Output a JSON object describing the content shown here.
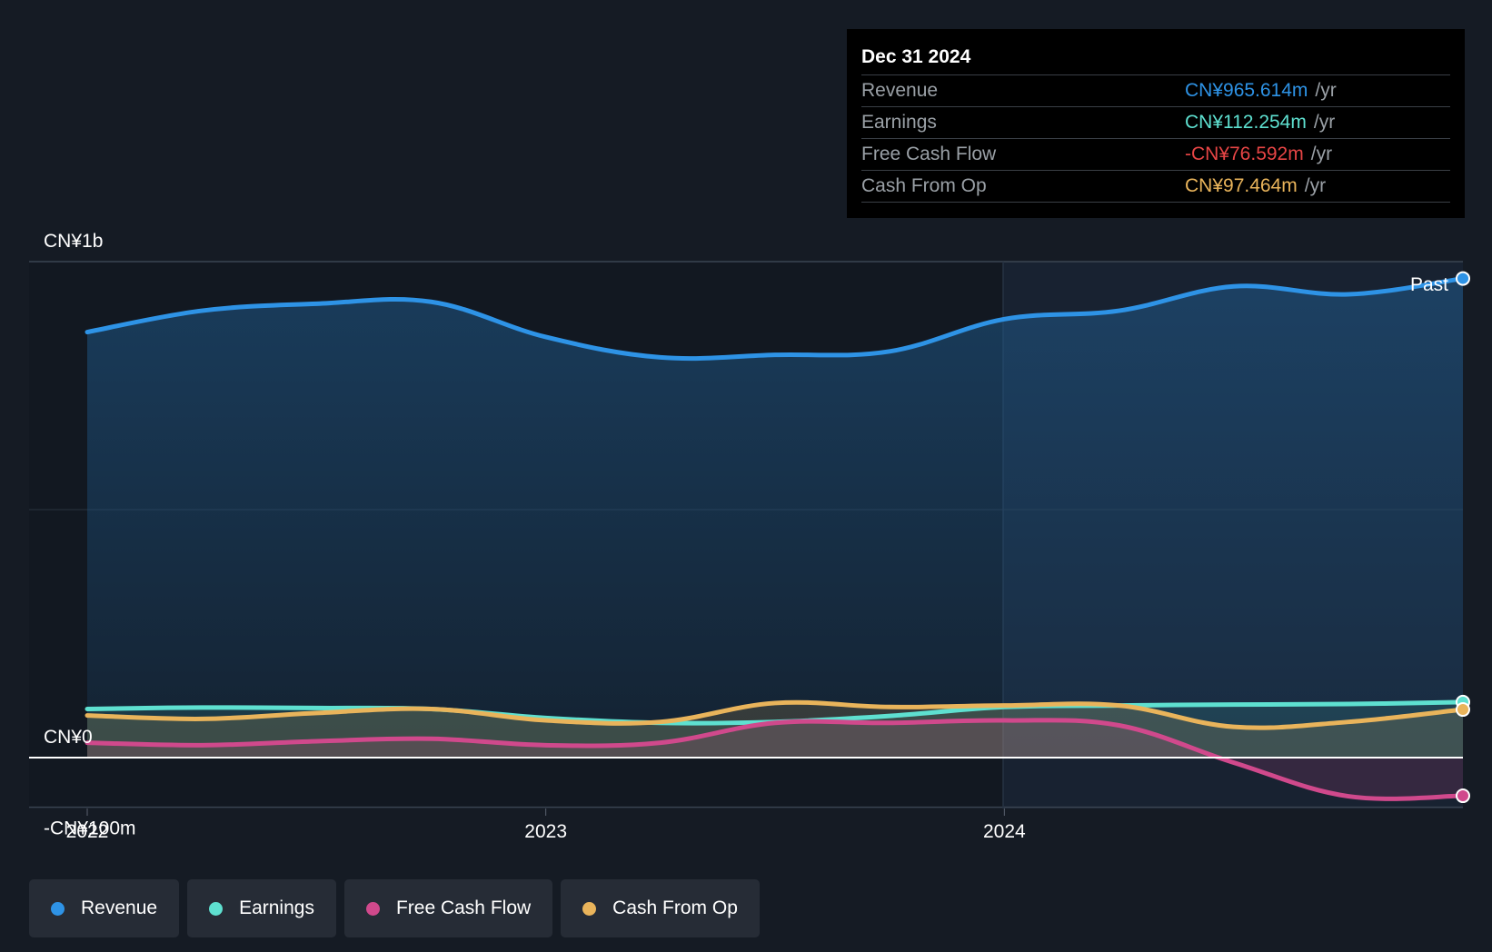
{
  "chart_data": {
    "type": "area",
    "x_ticks": [
      "2022",
      "2023",
      "2024"
    ],
    "y_ticks": [
      "CN¥1b",
      "CN¥0",
      "-CN¥100m"
    ],
    "ylim": [
      -100,
      1000
    ],
    "past_label": "Past",
    "x": [
      2022.0,
      2022.25,
      2022.5,
      2022.75,
      2023.0,
      2023.25,
      2023.5,
      2023.75,
      2024.0,
      2024.25,
      2024.5,
      2024.75,
      2025.0
    ],
    "series": [
      {
        "name": "Revenue",
        "color": "#2e93e6",
        "values": [
          858,
          901,
          915,
          919,
          848,
          807,
          812,
          819,
          884,
          901,
          950,
          934,
          966
        ]
      },
      {
        "name": "Earnings",
        "color": "#5ee0d0",
        "values": [
          98,
          101,
          100,
          98,
          80,
          70,
          72,
          84,
          102,
          105,
          107,
          108,
          112
        ]
      },
      {
        "name": "Free Cash Flow",
        "color": "#d0498c",
        "values": [
          30,
          25,
          33,
          38,
          25,
          30,
          70,
          70,
          75,
          65,
          -10,
          -78,
          -77
        ]
      },
      {
        "name": "Cash From Op",
        "color": "#e9b45b",
        "values": [
          85,
          78,
          90,
          98,
          75,
          72,
          110,
          102,
          105,
          105,
          62,
          72,
          97
        ]
      }
    ],
    "tooltip": {
      "date": "Dec 31 2024",
      "rows": [
        {
          "label": "Revenue",
          "value": "CN¥965.614m",
          "unit": "/yr",
          "color": "#2e93e6"
        },
        {
          "label": "Earnings",
          "value": "CN¥112.254m",
          "unit": "/yr",
          "color": "#5ee0d0"
        },
        {
          "label": "Free Cash Flow",
          "value": "-CN¥76.592m",
          "unit": "/yr",
          "color": "#e64545"
        },
        {
          "label": "Cash From Op",
          "value": "CN¥97.464m",
          "unit": "/yr",
          "color": "#e9b45b"
        }
      ]
    },
    "legend": [
      {
        "label": "Revenue",
        "color": "#2e93e6"
      },
      {
        "label": "Earnings",
        "color": "#5ee0d0"
      },
      {
        "label": "Free Cash Flow",
        "color": "#d0498c"
      },
      {
        "label": "Cash From Op",
        "color": "#e9b45b"
      }
    ]
  }
}
